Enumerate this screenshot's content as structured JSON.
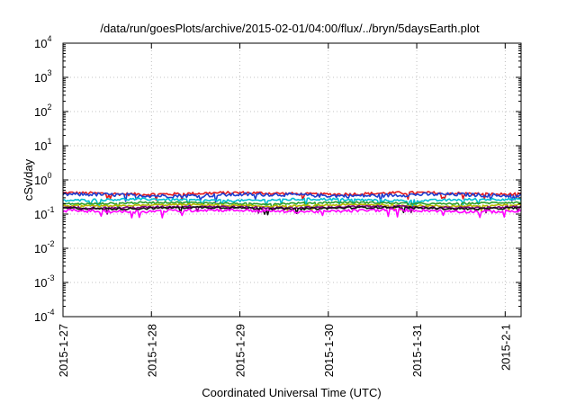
{
  "chart_data": {
    "type": "line",
    "title": "/data/run/goesPlots/archive/2015-02-01/04:00/flux/../bryn/5daysEarth.plot",
    "xlabel": "Coordinated Universal Time (UTC)",
    "ylabel": "cSv/day",
    "yscale": "log",
    "ylim": [
      0.0001,
      10000
    ],
    "xlim": [
      0,
      5.18
    ],
    "grid": true,
    "legend": "none",
    "y_ticks": [
      {
        "value": 0.0001,
        "mantissa": "10",
        "exp": "-4"
      },
      {
        "value": 0.001,
        "mantissa": "10",
        "exp": "-3"
      },
      {
        "value": 0.01,
        "mantissa": "10",
        "exp": "-2"
      },
      {
        "value": 0.1,
        "mantissa": "10",
        "exp": "-1"
      },
      {
        "value": 1,
        "mantissa": "10",
        "exp": "0"
      },
      {
        "value": 10,
        "mantissa": "10",
        "exp": "1"
      },
      {
        "value": 100,
        "mantissa": "10",
        "exp": "2"
      },
      {
        "value": 1000,
        "mantissa": "10",
        "exp": "3"
      },
      {
        "value": 10000,
        "mantissa": "10",
        "exp": "4"
      }
    ],
    "x_ticks": [
      {
        "value": 0,
        "label": "2015-1-27"
      },
      {
        "value": 1,
        "label": "2015-1-28"
      },
      {
        "value": 2,
        "label": "2015-1-29"
      },
      {
        "value": 3,
        "label": "2015-1-30"
      },
      {
        "value": 4,
        "label": "2015-1-31"
      },
      {
        "value": 5,
        "label": "2015-2-1"
      }
    ],
    "series": [
      {
        "color": "#e41a1c",
        "level": 0.4,
        "noise": 0.1
      },
      {
        "color": "#1f3fd0",
        "level": 0.36,
        "noise": 0.12
      },
      {
        "color": "#00bcd4",
        "level": 0.26,
        "noise": 0.08
      },
      {
        "color": "#2ca02c",
        "level": 0.21,
        "noise": 0.06
      },
      {
        "color": "#b8b800",
        "level": 0.18,
        "noise": 0.06
      },
      {
        "color": "#800080",
        "level": 0.16,
        "noise": 0.07
      },
      {
        "color": "#111111",
        "level": 0.15,
        "noise": 0.07
      },
      {
        "color": "#ff00ff",
        "level": 0.125,
        "noise": 0.1
      }
    ]
  }
}
